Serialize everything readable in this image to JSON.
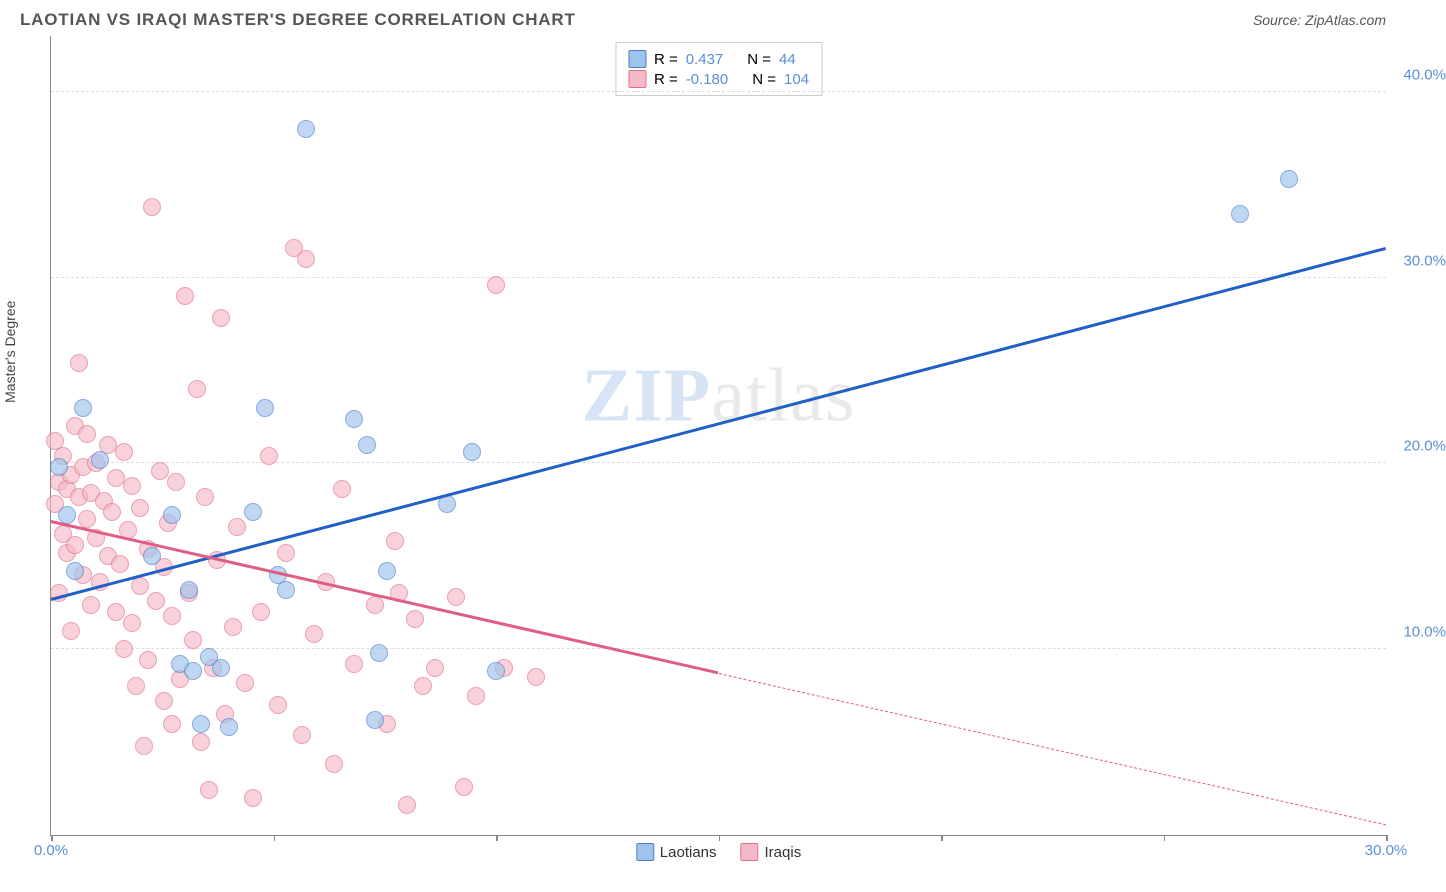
{
  "title": "LAOTIAN VS IRAQI MASTER'S DEGREE CORRELATION CHART",
  "source": "Source: ZipAtlas.com",
  "ylabel": "Master's Degree",
  "watermark_bold": "ZIP",
  "watermark_rest": "atlas",
  "watermark_color_bold": "#a8c4ea",
  "watermark_color_rest": "#d0d0d0",
  "chart": {
    "type": "scatter",
    "xlim": [
      0,
      33
    ],
    "ylim": [
      0,
      43
    ],
    "yticks": [
      10,
      20,
      30,
      40
    ],
    "ytick_labels": [
      "10.0%",
      "20.0%",
      "30.0%",
      "40.0%"
    ],
    "xticks": [
      0,
      5.5,
      11,
      16.5,
      22,
      27.5,
      33
    ],
    "xtick_labels": {
      "0": "0.0%",
      "33": "30.0%"
    },
    "tick_color": "#5a8fd8",
    "grid_color": "#dddddd",
    "series": [
      {
        "name": "Laotians",
        "color_fill": "#9ec3ed",
        "color_stroke": "#4a7fc8",
        "R": "0.437",
        "N": "44",
        "trend": {
          "x1": 0,
          "y1": 12.6,
          "x2": 33,
          "y2": 31.5,
          "color": "#2160c4",
          "solid_until_x": 33
        },
        "points": [
          [
            0.2,
            19.8
          ],
          [
            0.4,
            17.2
          ],
          [
            0.6,
            14.2
          ],
          [
            0.8,
            23.0
          ],
          [
            1.2,
            20.2
          ],
          [
            2.5,
            15.0
          ],
          [
            3.0,
            17.2
          ],
          [
            3.2,
            9.2
          ],
          [
            3.4,
            13.2
          ],
          [
            3.5,
            8.8
          ],
          [
            3.7,
            6.0
          ],
          [
            3.9,
            9.6
          ],
          [
            4.2,
            9.0
          ],
          [
            4.4,
            5.8
          ],
          [
            5.0,
            17.4
          ],
          [
            5.3,
            23.0
          ],
          [
            5.6,
            14.0
          ],
          [
            5.8,
            13.2
          ],
          [
            6.3,
            38.0
          ],
          [
            7.5,
            22.4
          ],
          [
            7.8,
            21.0
          ],
          [
            8.0,
            6.2
          ],
          [
            8.1,
            9.8
          ],
          [
            8.3,
            14.2
          ],
          [
            9.8,
            17.8
          ],
          [
            10.4,
            20.6
          ],
          [
            11.0,
            8.8
          ],
          [
            29.4,
            33.4
          ],
          [
            30.6,
            35.3
          ]
        ]
      },
      {
        "name": "Iraqis",
        "color_fill": "#f5bac8",
        "color_stroke": "#e16e8e",
        "R": "-0.180",
        "N": "104",
        "trend": {
          "x1": 0,
          "y1": 16.8,
          "x2": 33,
          "y2": 0.5,
          "color": "#e05d84",
          "solid_until_x": 16.5
        },
        "points": [
          [
            0.1,
            17.8
          ],
          [
            0.1,
            21.2
          ],
          [
            0.2,
            13.0
          ],
          [
            0.2,
            19.0
          ],
          [
            0.3,
            16.2
          ],
          [
            0.3,
            20.4
          ],
          [
            0.4,
            15.2
          ],
          [
            0.4,
            18.6
          ],
          [
            0.5,
            11.0
          ],
          [
            0.5,
            19.4
          ],
          [
            0.6,
            22.0
          ],
          [
            0.6,
            15.6
          ],
          [
            0.7,
            25.4
          ],
          [
            0.7,
            18.2
          ],
          [
            0.8,
            14.0
          ],
          [
            0.8,
            19.8
          ],
          [
            0.9,
            17.0
          ],
          [
            0.9,
            21.6
          ],
          [
            1.0,
            12.4
          ],
          [
            1.0,
            18.4
          ],
          [
            1.1,
            16.0
          ],
          [
            1.1,
            20.0
          ],
          [
            1.2,
            13.6
          ],
          [
            1.3,
            18.0
          ],
          [
            1.4,
            15.0
          ],
          [
            1.4,
            21.0
          ],
          [
            1.5,
            17.4
          ],
          [
            1.6,
            12.0
          ],
          [
            1.6,
            19.2
          ],
          [
            1.7,
            14.6
          ],
          [
            1.8,
            10.0
          ],
          [
            1.8,
            20.6
          ],
          [
            1.9,
            16.4
          ],
          [
            2.0,
            11.4
          ],
          [
            2.0,
            18.8
          ],
          [
            2.1,
            8.0
          ],
          [
            2.2,
            13.4
          ],
          [
            2.2,
            17.6
          ],
          [
            2.3,
            4.8
          ],
          [
            2.4,
            9.4
          ],
          [
            2.4,
            15.4
          ],
          [
            2.5,
            33.8
          ],
          [
            2.6,
            12.6
          ],
          [
            2.7,
            19.6
          ],
          [
            2.8,
            7.2
          ],
          [
            2.8,
            14.4
          ],
          [
            2.9,
            16.8
          ],
          [
            3.0,
            6.0
          ],
          [
            3.0,
            11.8
          ],
          [
            3.1,
            19.0
          ],
          [
            3.2,
            8.4
          ],
          [
            3.3,
            29.0
          ],
          [
            3.4,
            13.0
          ],
          [
            3.5,
            10.5
          ],
          [
            3.6,
            24.0
          ],
          [
            3.7,
            5.0
          ],
          [
            3.8,
            18.2
          ],
          [
            3.9,
            2.4
          ],
          [
            4.0,
            9.0
          ],
          [
            4.1,
            14.8
          ],
          [
            4.2,
            27.8
          ],
          [
            4.3,
            6.5
          ],
          [
            4.5,
            11.2
          ],
          [
            4.6,
            16.6
          ],
          [
            4.8,
            8.2
          ],
          [
            5.0,
            2.0
          ],
          [
            5.2,
            12.0
          ],
          [
            5.4,
            20.4
          ],
          [
            5.6,
            7.0
          ],
          [
            5.8,
            15.2
          ],
          [
            6.0,
            31.6
          ],
          [
            6.2,
            5.4
          ],
          [
            6.3,
            31.0
          ],
          [
            6.5,
            10.8
          ],
          [
            6.8,
            13.6
          ],
          [
            7.0,
            3.8
          ],
          [
            7.2,
            18.6
          ],
          [
            7.5,
            9.2
          ],
          [
            8.0,
            12.4
          ],
          [
            8.3,
            6.0
          ],
          [
            8.5,
            15.8
          ],
          [
            8.6,
            13.0
          ],
          [
            8.8,
            1.6
          ],
          [
            9.0,
            11.6
          ],
          [
            9.2,
            8.0
          ],
          [
            9.5,
            9.0
          ],
          [
            10.0,
            12.8
          ],
          [
            10.2,
            2.6
          ],
          [
            10.5,
            7.5
          ],
          [
            11.0,
            29.6
          ],
          [
            11.2,
            9.0
          ],
          [
            12.0,
            8.5
          ]
        ]
      }
    ]
  },
  "legend_bottom": [
    {
      "label": "Laotians",
      "fill": "#9ec3ed",
      "stroke": "#4a7fc8"
    },
    {
      "label": "Iraqis",
      "fill": "#f5bac8",
      "stroke": "#e16e8e"
    }
  ]
}
